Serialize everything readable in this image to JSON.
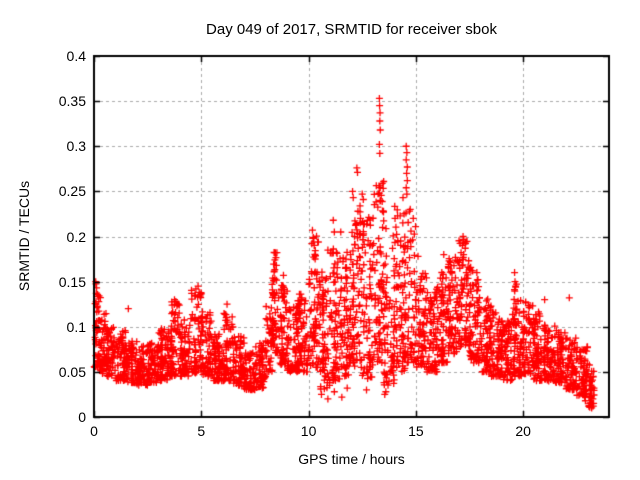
{
  "figure": {
    "title": "Day 049 of 2017, SRMTID for receiver sbok",
    "background": "#ffffff"
  },
  "chart_data": {
    "type": "scatter",
    "title": "Day 049 of 2017, SRMTID for receiver sbok",
    "xlabel": "GPS time / hours",
    "ylabel": "SRMTID / TECUs",
    "xlim": [
      0,
      24
    ],
    "ylim": [
      0,
      0.4
    ],
    "grid": true,
    "grid_color": "#aaaaaa",
    "border_color": "#000000",
    "marker": {
      "shape": "plus",
      "color": "#ff0000",
      "size": 7
    },
    "x_ticks": [
      {
        "v": 0,
        "label": "0"
      },
      {
        "v": 5,
        "label": "5"
      },
      {
        "v": 10,
        "label": "10"
      },
      {
        "v": 15,
        "label": "15"
      },
      {
        "v": 20,
        "label": "20"
      }
    ],
    "y_ticks": [
      {
        "v": 0.0,
        "label": "0"
      },
      {
        "v": 0.05,
        "label": "0.05"
      },
      {
        "v": 0.1,
        "label": "0.1"
      },
      {
        "v": 0.15,
        "label": "0.15"
      },
      {
        "v": 0.2,
        "label": "0.2"
      },
      {
        "v": 0.25,
        "label": "0.25"
      },
      {
        "v": 0.3,
        "label": "0.3"
      },
      {
        "v": 0.35,
        "label": "0.35"
      },
      {
        "v": 0.4,
        "label": "0.4"
      }
    ],
    "series_name": "SRMTID",
    "density_bands": [
      [
        0.0,
        0.3,
        0.055,
        0.148,
        50
      ],
      [
        0.3,
        0.6,
        0.048,
        0.115,
        45
      ],
      [
        0.6,
        1.0,
        0.045,
        0.1,
        55
      ],
      [
        1.0,
        1.5,
        0.04,
        0.096,
        70
      ],
      [
        1.5,
        2.0,
        0.038,
        0.085,
        70
      ],
      [
        2.0,
        2.5,
        0.035,
        0.08,
        70
      ],
      [
        2.5,
        3.0,
        0.038,
        0.082,
        70
      ],
      [
        3.0,
        3.5,
        0.04,
        0.098,
        70
      ],
      [
        3.5,
        4.0,
        0.045,
        0.128,
        70
      ],
      [
        4.0,
        4.5,
        0.045,
        0.108,
        65
      ],
      [
        4.5,
        5.0,
        0.048,
        0.142,
        65
      ],
      [
        5.0,
        5.5,
        0.045,
        0.118,
        65
      ],
      [
        5.5,
        6.0,
        0.04,
        0.092,
        65
      ],
      [
        6.0,
        6.5,
        0.04,
        0.118,
        65
      ],
      [
        6.5,
        7.0,
        0.035,
        0.09,
        65
      ],
      [
        7.0,
        7.5,
        0.03,
        0.072,
        60
      ],
      [
        7.5,
        8.0,
        0.032,
        0.082,
        60
      ],
      [
        8.0,
        8.3,
        0.05,
        0.125,
        35
      ],
      [
        8.3,
        8.6,
        0.07,
        0.185,
        50
      ],
      [
        8.6,
        9.0,
        0.058,
        0.158,
        55
      ],
      [
        9.0,
        9.5,
        0.05,
        0.122,
        65
      ],
      [
        9.5,
        10.0,
        0.05,
        0.138,
        65
      ],
      [
        10.0,
        10.5,
        0.055,
        0.205,
        70
      ],
      [
        10.5,
        11.0,
        0.03,
        0.168,
        70
      ],
      [
        11.0,
        11.5,
        0.04,
        0.19,
        70
      ],
      [
        11.5,
        12.0,
        0.045,
        0.188,
        70
      ],
      [
        12.0,
        12.5,
        0.055,
        0.235,
        75
      ],
      [
        12.5,
        13.0,
        0.04,
        0.222,
        70
      ],
      [
        13.0,
        13.5,
        0.06,
        0.262,
        75
      ],
      [
        13.5,
        14.0,
        0.035,
        0.212,
        70
      ],
      [
        14.0,
        14.5,
        0.05,
        0.238,
        70
      ],
      [
        14.5,
        15.0,
        0.06,
        0.232,
        70
      ],
      [
        15.0,
        15.5,
        0.055,
        0.162,
        70
      ],
      [
        15.5,
        16.0,
        0.05,
        0.142,
        70
      ],
      [
        16.0,
        16.5,
        0.06,
        0.162,
        70
      ],
      [
        16.5,
        17.0,
        0.07,
        0.178,
        75
      ],
      [
        17.0,
        17.5,
        0.078,
        0.198,
        75
      ],
      [
        17.5,
        18.0,
        0.06,
        0.168,
        70
      ],
      [
        18.0,
        18.5,
        0.05,
        0.132,
        70
      ],
      [
        18.5,
        19.0,
        0.045,
        0.118,
        70
      ],
      [
        19.0,
        19.5,
        0.04,
        0.108,
        70
      ],
      [
        19.5,
        20.0,
        0.045,
        0.148,
        70
      ],
      [
        20.0,
        20.5,
        0.048,
        0.128,
        70
      ],
      [
        20.5,
        21.0,
        0.04,
        0.118,
        70
      ],
      [
        21.0,
        21.5,
        0.04,
        0.102,
        70
      ],
      [
        21.5,
        22.0,
        0.038,
        0.096,
        70
      ],
      [
        22.0,
        22.5,
        0.03,
        0.088,
        70
      ],
      [
        22.5,
        23.0,
        0.022,
        0.078,
        65
      ],
      [
        23.0,
        23.3,
        0.01,
        0.062,
        40
      ]
    ],
    "outlier_points": [
      [
        0.08,
        0.15
      ],
      [
        0.12,
        0.143
      ],
      [
        4.85,
        0.145
      ],
      [
        4.9,
        0.138
      ],
      [
        3.75,
        0.13
      ],
      [
        1.6,
        0.12
      ],
      [
        6.2,
        0.125
      ],
      [
        8.45,
        0.182
      ],
      [
        8.43,
        0.174
      ],
      [
        8.5,
        0.168
      ],
      [
        10.18,
        0.207
      ],
      [
        10.22,
        0.199
      ],
      [
        10.15,
        0.192
      ],
      [
        10.9,
        0.185
      ],
      [
        11.15,
        0.218
      ],
      [
        11.2,
        0.205
      ],
      [
        11.5,
        0.205
      ],
      [
        12.05,
        0.25
      ],
      [
        12.08,
        0.243
      ],
      [
        12.25,
        0.276
      ],
      [
        12.28,
        0.271
      ],
      [
        12.3,
        0.228
      ],
      [
        12.42,
        0.22
      ],
      [
        12.5,
        0.247
      ],
      [
        12.55,
        0.241
      ],
      [
        12.6,
        0.214
      ],
      [
        13.3,
        0.353
      ],
      [
        13.31,
        0.345
      ],
      [
        13.33,
        0.337
      ],
      [
        13.32,
        0.328
      ],
      [
        13.34,
        0.318
      ],
      [
        13.3,
        0.302
      ],
      [
        13.32,
        0.292
      ],
      [
        13.28,
        0.256
      ],
      [
        13.3,
        0.248
      ],
      [
        13.35,
        0.24
      ],
      [
        13.45,
        0.21
      ],
      [
        14.4,
        0.243
      ],
      [
        14.45,
        0.225
      ],
      [
        14.55,
        0.3
      ],
      [
        14.58,
        0.293
      ],
      [
        14.55,
        0.285
      ],
      [
        14.6,
        0.277
      ],
      [
        14.57,
        0.27
      ],
      [
        14.6,
        0.262
      ],
      [
        14.55,
        0.254
      ],
      [
        14.58,
        0.247
      ],
      [
        15.1,
        0.178
      ],
      [
        16.3,
        0.18
      ],
      [
        17.2,
        0.2
      ],
      [
        17.23,
        0.193
      ],
      [
        17.3,
        0.187
      ],
      [
        19.6,
        0.16
      ],
      [
        19.62,
        0.15
      ],
      [
        19.65,
        0.144
      ],
      [
        21.0,
        0.13
      ],
      [
        22.15,
        0.132
      ],
      [
        10.6,
        0.025
      ],
      [
        10.9,
        0.02
      ],
      [
        11.2,
        0.028
      ],
      [
        11.55,
        0.022
      ],
      [
        11.8,
        0.032
      ],
      [
        12.7,
        0.03
      ],
      [
        13.55,
        0.025
      ],
      [
        13.6,
        0.028
      ],
      [
        22.9,
        0.018
      ],
      [
        23.1,
        0.015
      ],
      [
        23.2,
        0.012
      ],
      [
        23.25,
        0.02
      ]
    ]
  }
}
